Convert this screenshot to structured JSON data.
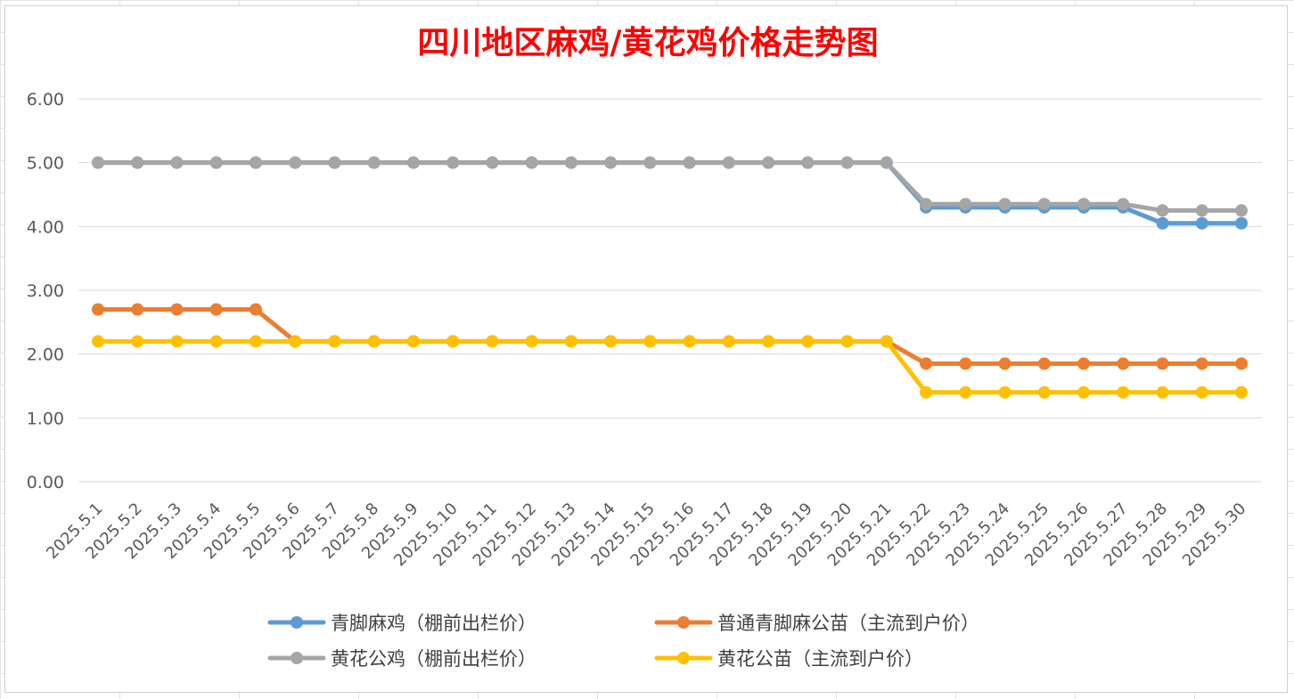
{
  "chart_data": {
    "type": "line",
    "title": "四川地区麻鸡/黄花鸡价格走势图",
    "xlabel": "",
    "ylabel": "",
    "ylim": [
      0,
      6
    ],
    "yticks": [
      "0.00",
      "1.00",
      "2.00",
      "3.00",
      "4.00",
      "5.00",
      "6.00"
    ],
    "grid": true,
    "legend_position": "bottom",
    "categories": [
      "2025.5.1",
      "2025.5.2",
      "2025.5.3",
      "2025.5.4",
      "2025.5.5",
      "2025.5.6",
      "2025.5.7",
      "2025.5.8",
      "2025.5.9",
      "2025.5.10",
      "2025.5.11",
      "2025.5.12",
      "2025.5.13",
      "2025.5.14",
      "2025.5.15",
      "2025.5.16",
      "2025.5.17",
      "2025.5.18",
      "2025.5.19",
      "2025.5.20",
      "2025.5.21",
      "2025.5.22",
      "2025.5.23",
      "2025.5.24",
      "2025.5.25",
      "2025.5.26",
      "2025.5.27",
      "2025.5.28",
      "2025.5.29",
      "2025.5.30"
    ],
    "series": [
      {
        "name": "青脚麻鸡（棚前出栏价）",
        "color": "#5b9bd5",
        "values": [
          5.0,
          5.0,
          5.0,
          5.0,
          5.0,
          5.0,
          5.0,
          5.0,
          5.0,
          5.0,
          5.0,
          5.0,
          5.0,
          5.0,
          5.0,
          5.0,
          5.0,
          5.0,
          5.0,
          5.0,
          5.0,
          4.3,
          4.3,
          4.3,
          4.3,
          4.3,
          4.3,
          4.05,
          4.05,
          4.05
        ]
      },
      {
        "name": "普通青脚麻公苗（主流到户价）",
        "color": "#ed7d31",
        "values": [
          2.7,
          2.7,
          2.7,
          2.7,
          2.7,
          2.2,
          2.2,
          2.2,
          2.2,
          2.2,
          2.2,
          2.2,
          2.2,
          2.2,
          2.2,
          2.2,
          2.2,
          2.2,
          2.2,
          2.2,
          2.2,
          1.85,
          1.85,
          1.85,
          1.85,
          1.85,
          1.85,
          1.85,
          1.85,
          1.85
        ]
      },
      {
        "name": "黄花公鸡（棚前出栏价）",
        "color": "#a5a5a5",
        "values": [
          5.0,
          5.0,
          5.0,
          5.0,
          5.0,
          5.0,
          5.0,
          5.0,
          5.0,
          5.0,
          5.0,
          5.0,
          5.0,
          5.0,
          5.0,
          5.0,
          5.0,
          5.0,
          5.0,
          5.0,
          5.0,
          4.35,
          4.35,
          4.35,
          4.35,
          4.35,
          4.35,
          4.25,
          4.25,
          4.25
        ]
      },
      {
        "name": "黄花公苗（主流到户价）",
        "color": "#ffc000",
        "values": [
          2.2,
          2.2,
          2.2,
          2.2,
          2.2,
          2.2,
          2.2,
          2.2,
          2.2,
          2.2,
          2.2,
          2.2,
          2.2,
          2.2,
          2.2,
          2.2,
          2.2,
          2.2,
          2.2,
          2.2,
          2.2,
          1.4,
          1.4,
          1.4,
          1.4,
          1.4,
          1.4,
          1.4,
          1.4,
          1.4
        ]
      }
    ],
    "draw_order": [
      0,
      2,
      1,
      3
    ],
    "legend_layout": [
      [
        0,
        1
      ],
      [
        2,
        3
      ]
    ]
  }
}
